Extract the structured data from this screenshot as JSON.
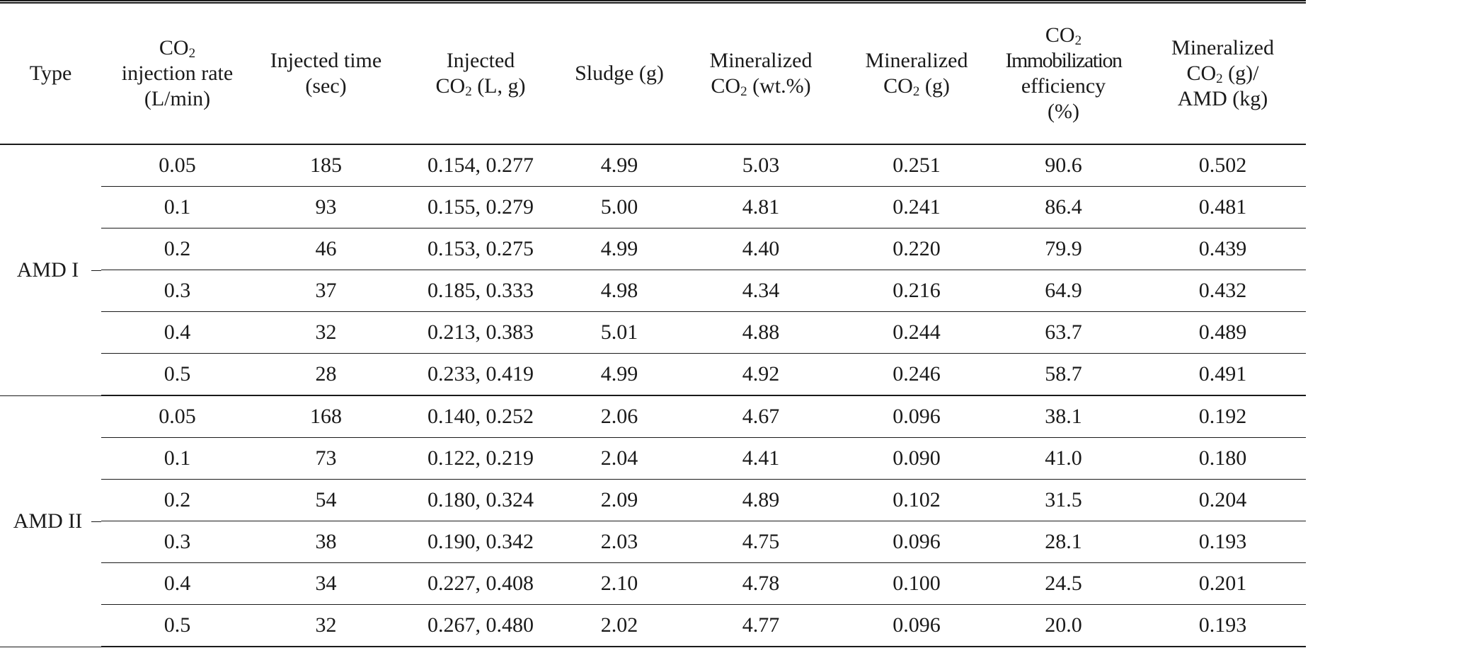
{
  "headers": {
    "type": "Type",
    "rate": {
      "l1a": "CO",
      "l1b": "2",
      "l2": "injection rate",
      "l3": "(L/min)"
    },
    "time": {
      "l1": "Injected time",
      "l2": "(sec)"
    },
    "injected": {
      "l1": "Injected",
      "l2a": "CO",
      "l2b": "2",
      "l2c": " (L, g)"
    },
    "sludge": "Sludge (g)",
    "min_wt": {
      "l1": "Mineralized",
      "l2a": "CO",
      "l2b": "2",
      "l2c": " (wt.%)"
    },
    "min_g": {
      "l1": "Mineralized",
      "l2a": "CO",
      "l2b": "2",
      "l2c": " (g)"
    },
    "eff": {
      "l1a": "CO",
      "l1b": "2",
      "l2": "Immobilization",
      "l3": "efficiency",
      "l4": "(%)"
    },
    "per_amd": {
      "l1": "Mineralized",
      "l2a": "CO",
      "l2b": "2",
      "l2c": " (g)/",
      "l3": "AMD (kg)"
    }
  },
  "groups": [
    {
      "type": "AMD I",
      "rows": [
        [
          "0.05",
          "185",
          "0.154, 0.277",
          "4.99",
          "5.03",
          "0.251",
          "90.6",
          "0.502"
        ],
        [
          "0.1",
          "93",
          "0.155, 0.279",
          "5.00",
          "4.81",
          "0.241",
          "86.4",
          "0.481"
        ],
        [
          "0.2",
          "46",
          "0.153, 0.275",
          "4.99",
          "4.40",
          "0.220",
          "79.9",
          "0.439"
        ],
        [
          "0.3",
          "37",
          "0.185, 0.333",
          "4.98",
          "4.34",
          "0.216",
          "64.9",
          "0.432"
        ],
        [
          "0.4",
          "32",
          "0.213, 0.383",
          "5.01",
          "4.88",
          "0.244",
          "63.7",
          "0.489"
        ],
        [
          "0.5",
          "28",
          "0.233, 0.419",
          "4.99",
          "4.92",
          "0.246",
          "58.7",
          "0.491"
        ]
      ]
    },
    {
      "type": "AMD II",
      "rows": [
        [
          "0.05",
          "168",
          "0.140, 0.252",
          "2.06",
          "4.67",
          "0.096",
          "38.1",
          "0.192"
        ],
        [
          "0.1",
          "73",
          "0.122, 0.219",
          "2.04",
          "4.41",
          "0.090",
          "41.0",
          "0.180"
        ],
        [
          "0.2",
          "54",
          "0.180, 0.324",
          "2.09",
          "4.89",
          "0.102",
          "31.5",
          "0.204"
        ],
        [
          "0.3",
          "38",
          "0.190, 0.342",
          "2.03",
          "4.75",
          "0.096",
          "28.1",
          "0.193"
        ],
        [
          "0.4",
          "34",
          "0.227, 0.408",
          "2.10",
          "4.78",
          "0.100",
          "24.5",
          "0.201"
        ],
        [
          "0.5",
          "32",
          "0.267, 0.480",
          "2.02",
          "4.77",
          "0.096",
          "20.0",
          "0.193"
        ]
      ]
    }
  ]
}
